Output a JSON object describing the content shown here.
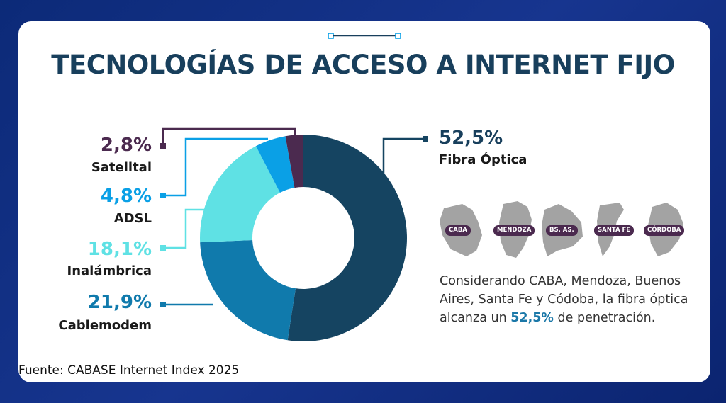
{
  "title": "TECNOLOGÍAS DE ACCESO A INTERNET FIJO",
  "colors": {
    "fibra": "#154461",
    "cablemodem": "#107aac",
    "inalambrica": "#5fe1e4",
    "adsl": "#0aa0e6",
    "satelital": "#4b2a4f",
    "province_shape": "#a3a3a3",
    "province_tag": "#4b2a4f"
  },
  "chart_data": {
    "type": "pie",
    "subtype": "donut",
    "title": "TECNOLOGÍAS DE ACCESO A INTERNET FIJO",
    "unit": "%",
    "slices": [
      {
        "label": "Fibra Óptica",
        "value": 52.5,
        "display": "52,5%"
      },
      {
        "label": "Cablemodem",
        "value": 21.9,
        "display": "21,9%"
      },
      {
        "label": "Inalámbrica",
        "value": 18.1,
        "display": "18,1%"
      },
      {
        "label": "ADSL",
        "value": 4.8,
        "display": "4,8%"
      },
      {
        "label": "Satelital",
        "value": 2.8,
        "display": "2,8%"
      }
    ]
  },
  "provinces": [
    "CABA",
    "MENDOZA",
    "BS. AS.",
    "SANTA FE",
    "CÓRDOBA"
  ],
  "note": {
    "before": "Considerando CABA, Mendoza, Buenos Aires, Santa Fe y Códoba, la fibra óptica alcanza un ",
    "highlight": "52,5%",
    "after": " de penetración."
  },
  "source": "Fuente: CABASE Internet Index 2025"
}
